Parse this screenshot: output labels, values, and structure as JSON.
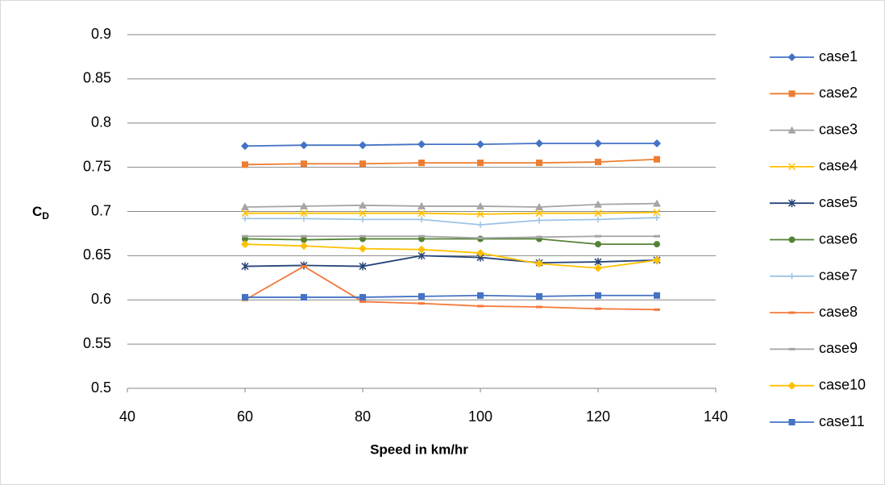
{
  "chart_data": {
    "type": "line",
    "x_label": "Speed in km/hr",
    "y_label": "C",
    "y_label_sub": "D",
    "x": [
      60,
      70,
      80,
      90,
      100,
      110,
      120,
      130
    ],
    "xlim": [
      40,
      140
    ],
    "xticks": [
      40,
      60,
      80,
      100,
      120,
      140
    ],
    "ylim": [
      0.5,
      0.9
    ],
    "yticks": [
      0.5,
      0.55,
      0.6,
      0.65,
      0.7,
      0.75,
      0.8,
      0.85,
      0.9
    ],
    "grid": true,
    "legend": "right",
    "series": [
      {
        "name": "case1",
        "color": "#4472c4",
        "marker": "diamond",
        "values": [
          0.774,
          0.775,
          0.775,
          0.776,
          0.776,
          0.777,
          0.777,
          0.777
        ]
      },
      {
        "name": "case2",
        "color": "#ed7d31",
        "marker": "square",
        "values": [
          0.753,
          0.754,
          0.754,
          0.755,
          0.755,
          0.755,
          0.756,
          0.759
        ]
      },
      {
        "name": "case3",
        "color": "#a5a5a5",
        "marker": "triangle",
        "values": [
          0.705,
          0.706,
          0.707,
          0.706,
          0.706,
          0.705,
          0.708,
          0.709
        ]
      },
      {
        "name": "case4",
        "color": "#ffc000",
        "marker": "x",
        "values": [
          0.698,
          0.698,
          0.698,
          0.698,
          0.697,
          0.698,
          0.698,
          0.699
        ]
      },
      {
        "name": "case5",
        "color": "#264478",
        "marker": "star",
        "values": [
          0.638,
          0.639,
          0.638,
          0.65,
          0.648,
          0.642,
          0.643,
          0.645
        ]
      },
      {
        "name": "case6",
        "color": "#548235",
        "marker": "circle",
        "values": [
          0.669,
          0.668,
          0.669,
          0.669,
          0.669,
          0.669,
          0.663,
          0.663
        ]
      },
      {
        "name": "case7",
        "color": "#9dc3e6",
        "marker": "plus",
        "values": [
          0.692,
          0.692,
          0.691,
          0.691,
          0.685,
          0.69,
          0.691,
          0.693
        ]
      },
      {
        "name": "case8",
        "color": "#f4793b",
        "marker": "dash",
        "values": [
          0.6,
          0.638,
          0.598,
          0.596,
          0.593,
          0.592,
          0.59,
          0.589
        ]
      },
      {
        "name": "case9",
        "color": "#a5a5a5",
        "marker": "dash",
        "values": [
          0.672,
          0.672,
          0.672,
          0.672,
          0.67,
          0.671,
          0.672,
          0.672
        ]
      },
      {
        "name": "case10",
        "color": "#ffc000",
        "marker": "diamond",
        "values": [
          0.663,
          0.661,
          0.658,
          0.657,
          0.653,
          0.641,
          0.636,
          0.645
        ]
      },
      {
        "name": "case11",
        "color": "#4472c4",
        "marker": "square",
        "values": [
          0.603,
          0.603,
          0.603,
          0.604,
          0.605,
          0.604,
          0.605,
          0.605
        ]
      }
    ]
  }
}
